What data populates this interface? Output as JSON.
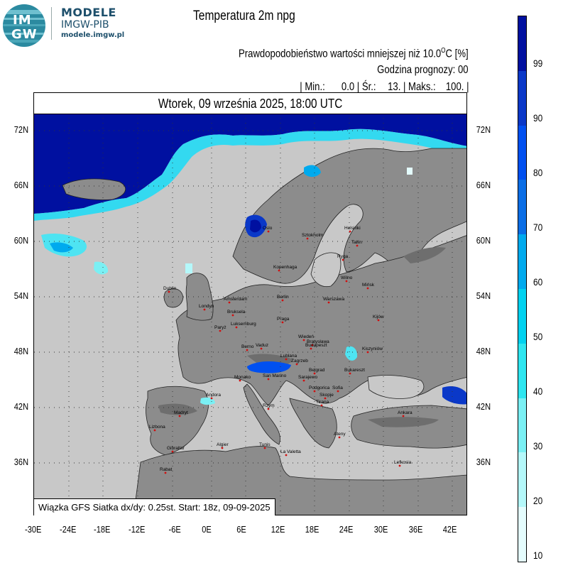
{
  "header": {
    "brand_line1": "MODELE",
    "brand_line2": "IMGW-PIB",
    "brand_line3": "modele.imgw.pl",
    "logo_top": "IM",
    "logo_bottom": "GW"
  },
  "title": "Temperatura 2m npg",
  "subtitle_prefix": "Prawdopodobieństwo wartości mniejszej niż 10.0",
  "subtitle_unit_sup": "O",
  "subtitle_suffix": "C [%]",
  "forecast_hour": "Godzina prognozy: 00",
  "stats": {
    "min_label": "| Min.:",
    "min_value": "0.0",
    "mean_label": "| Śr.:",
    "mean_value": "13.",
    "max_label": "| Maks.:",
    "max_value": "100.",
    "end": "|"
  },
  "map": {
    "date": "Wtorek, 09 września 2025, 18:00 UTC",
    "footer": "Wiązka GFS Siatka dx/dy: 0.25st. Start: 18z, 09-09-2025",
    "lat_labels": [
      "72N",
      "66N",
      "60N",
      "54N",
      "48N",
      "42N",
      "36N"
    ],
    "lon_labels": [
      "-30E",
      "-24E",
      "-18E",
      "-12E",
      "-6E",
      "0E",
      "6E",
      "12E",
      "18E",
      "24E",
      "30E",
      "36E",
      "42E"
    ],
    "cities": [
      {
        "name": "Oslo"
      },
      {
        "name": "Sztokholm"
      },
      {
        "name": "Helsinki"
      },
      {
        "name": "Tallin"
      },
      {
        "name": "Ryga"
      },
      {
        "name": "Wilno"
      },
      {
        "name": "Mińsk"
      },
      {
        "name": "Kopenhaga"
      },
      {
        "name": "Dublin"
      },
      {
        "name": "Londyn"
      },
      {
        "name": "Amsterdam"
      },
      {
        "name": "Bruksela"
      },
      {
        "name": "Luksemburg"
      },
      {
        "name": "Paryż"
      },
      {
        "name": "Berlin"
      },
      {
        "name": "Warszawa"
      },
      {
        "name": "Kijów"
      },
      {
        "name": "Praga"
      },
      {
        "name": "Wiedeń"
      },
      {
        "name": "Bratysława"
      },
      {
        "name": "Budapeszt"
      },
      {
        "name": "Kiszyniów"
      },
      {
        "name": "Berno"
      },
      {
        "name": "Vaduz"
      },
      {
        "name": "Lublana"
      },
      {
        "name": "Zagrzeb"
      },
      {
        "name": "Belgrad"
      },
      {
        "name": "Bukareszt"
      },
      {
        "name": "Sarajewo"
      },
      {
        "name": "Monako"
      },
      {
        "name": "San Marino"
      },
      {
        "name": "Podgorica"
      },
      {
        "name": "Sofia"
      },
      {
        "name": "Skopje"
      },
      {
        "name": "Tirana"
      },
      {
        "name": "Andora"
      },
      {
        "name": "Rzym"
      },
      {
        "name": "Ankara"
      },
      {
        "name": "Madryt"
      },
      {
        "name": "Lizbona"
      },
      {
        "name": "Ateny"
      },
      {
        "name": "Gibraltar"
      },
      {
        "name": "Algier"
      },
      {
        "name": "Tunis"
      },
      {
        "name": "La Valetta"
      },
      {
        "name": "Lefkosia"
      },
      {
        "name": "Rabat"
      }
    ]
  },
  "colorbar": {
    "labels": [
      "99",
      "90",
      "80",
      "70",
      "60",
      "50",
      "40",
      "30",
      "20",
      "10"
    ],
    "colors": [
      "#0010a0",
      "#0a38c8",
      "#0050f0",
      "#0a6ee6",
      "#00aaee",
      "#00d2f0",
      "#2ee6f0",
      "#7af0f4",
      "#b4f8fa",
      "#e4fcfd"
    ]
  }
}
